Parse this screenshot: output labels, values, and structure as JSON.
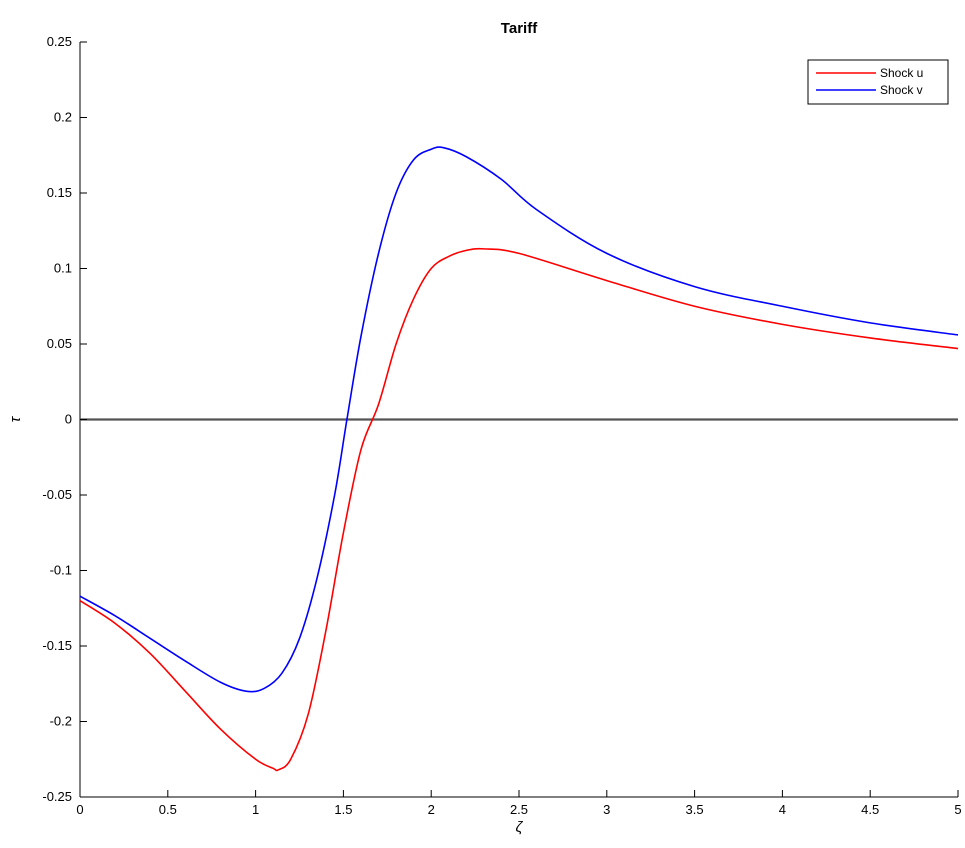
{
  "chart_data": {
    "type": "line",
    "title": "Tariff",
    "xlabel": "ζ",
    "ylabel": "τ",
    "xlim": [
      0,
      5
    ],
    "ylim": [
      -0.25,
      0.25
    ],
    "xticks": [
      0,
      0.5,
      1,
      1.5,
      2,
      2.5,
      3,
      3.5,
      4,
      4.5,
      5
    ],
    "xtick_labels": [
      "0",
      "0.5",
      "1",
      "1.5",
      "2",
      "2.5",
      "3",
      "3.5",
      "4",
      "4.5",
      "5"
    ],
    "yticks": [
      -0.25,
      -0.2,
      -0.15,
      -0.1,
      -0.05,
      0,
      0.05,
      0.1,
      0.15,
      0.2,
      0.25
    ],
    "ytick_labels": [
      "-0.25",
      "-0.2",
      "-0.15",
      "-0.1",
      "-0.05",
      "0",
      "0.05",
      "0.1",
      "0.15",
      "0.2",
      "0.25"
    ],
    "grid": false,
    "legend_position": "top-right",
    "reference_line": {
      "y": 0,
      "color": "#555555"
    },
    "series": [
      {
        "name": "Shock u",
        "color": "#ff0000",
        "x": [
          0,
          0.2,
          0.4,
          0.6,
          0.8,
          1.0,
          1.1,
          1.13,
          1.2,
          1.3,
          1.4,
          1.5,
          1.6,
          1.7,
          1.8,
          1.9,
          2.0,
          2.1,
          2.2,
          2.3,
          2.5,
          3.0,
          3.5,
          4.0,
          4.5,
          5.0
        ],
        "y": [
          -0.12,
          -0.135,
          -0.155,
          -0.18,
          -0.205,
          -0.225,
          -0.231,
          -0.232,
          -0.225,
          -0.195,
          -0.14,
          -0.075,
          -0.02,
          0.01,
          0.05,
          0.08,
          0.1,
          0.108,
          0.112,
          0.113,
          0.11,
          0.092,
          0.075,
          0.063,
          0.054,
          0.047
        ]
      },
      {
        "name": "Shock v",
        "color": "#0000ff",
        "x": [
          0,
          0.2,
          0.4,
          0.6,
          0.8,
          0.95,
          1.05,
          1.15,
          1.25,
          1.35,
          1.45,
          1.52,
          1.6,
          1.7,
          1.8,
          1.9,
          2.0,
          2.07,
          2.2,
          2.4,
          2.6,
          3.0,
          3.5,
          4.0,
          4.5,
          5.0
        ],
        "y": [
          -0.117,
          -0.13,
          -0.145,
          -0.16,
          -0.174,
          -0.18,
          -0.178,
          -0.168,
          -0.145,
          -0.105,
          -0.05,
          0.0,
          0.055,
          0.11,
          0.15,
          0.172,
          0.179,
          0.18,
          0.174,
          0.159,
          0.139,
          0.11,
          0.088,
          0.075,
          0.064,
          0.056
        ]
      }
    ]
  }
}
